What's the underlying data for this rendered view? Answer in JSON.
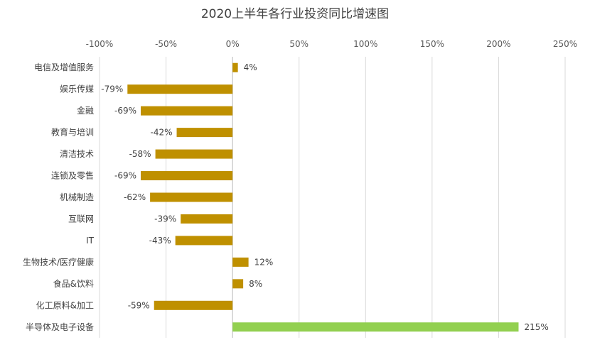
{
  "chart_data": {
    "type": "bar",
    "orientation": "horizontal",
    "title": "2020上半年各行业投资同比增速图",
    "xlabel": "",
    "ylabel": "",
    "xlim": [
      -100,
      250
    ],
    "x_ticks": [
      -100,
      -50,
      0,
      50,
      100,
      150,
      200,
      250
    ],
    "x_tick_labels": [
      "-100%",
      "-50%",
      "0%",
      "50%",
      "100%",
      "150%",
      "200%",
      "250%"
    ],
    "axis_position": "top",
    "grid": true,
    "legend": "none",
    "categories": [
      "电信及增值服务",
      "娱乐传媒",
      "金融",
      "教育与培训",
      "清洁技术",
      "连锁及零售",
      "机械制造",
      "互联网",
      "IT",
      "生物技术/医疗健康",
      "食品&饮料",
      "化工原料&加工",
      "半导体及电子设备"
    ],
    "values": [
      4,
      -79,
      -69,
      -42,
      -58,
      -69,
      -62,
      -39,
      -43,
      12,
      8,
      -59,
      215
    ],
    "value_labels": [
      "4%",
      "-79%",
      "-69%",
      "-42%",
      "-58%",
      "-69%",
      "-62%",
      "-39%",
      "-43%",
      "12%",
      "8%",
      "-59%",
      "215%"
    ],
    "colors": {
      "default_bar": "#BF9000",
      "highlight_bar": "#92D050",
      "grid": "#D9D9D9",
      "axis": "#BFBFBF"
    },
    "highlight_category": "半导体及电子设备"
  }
}
